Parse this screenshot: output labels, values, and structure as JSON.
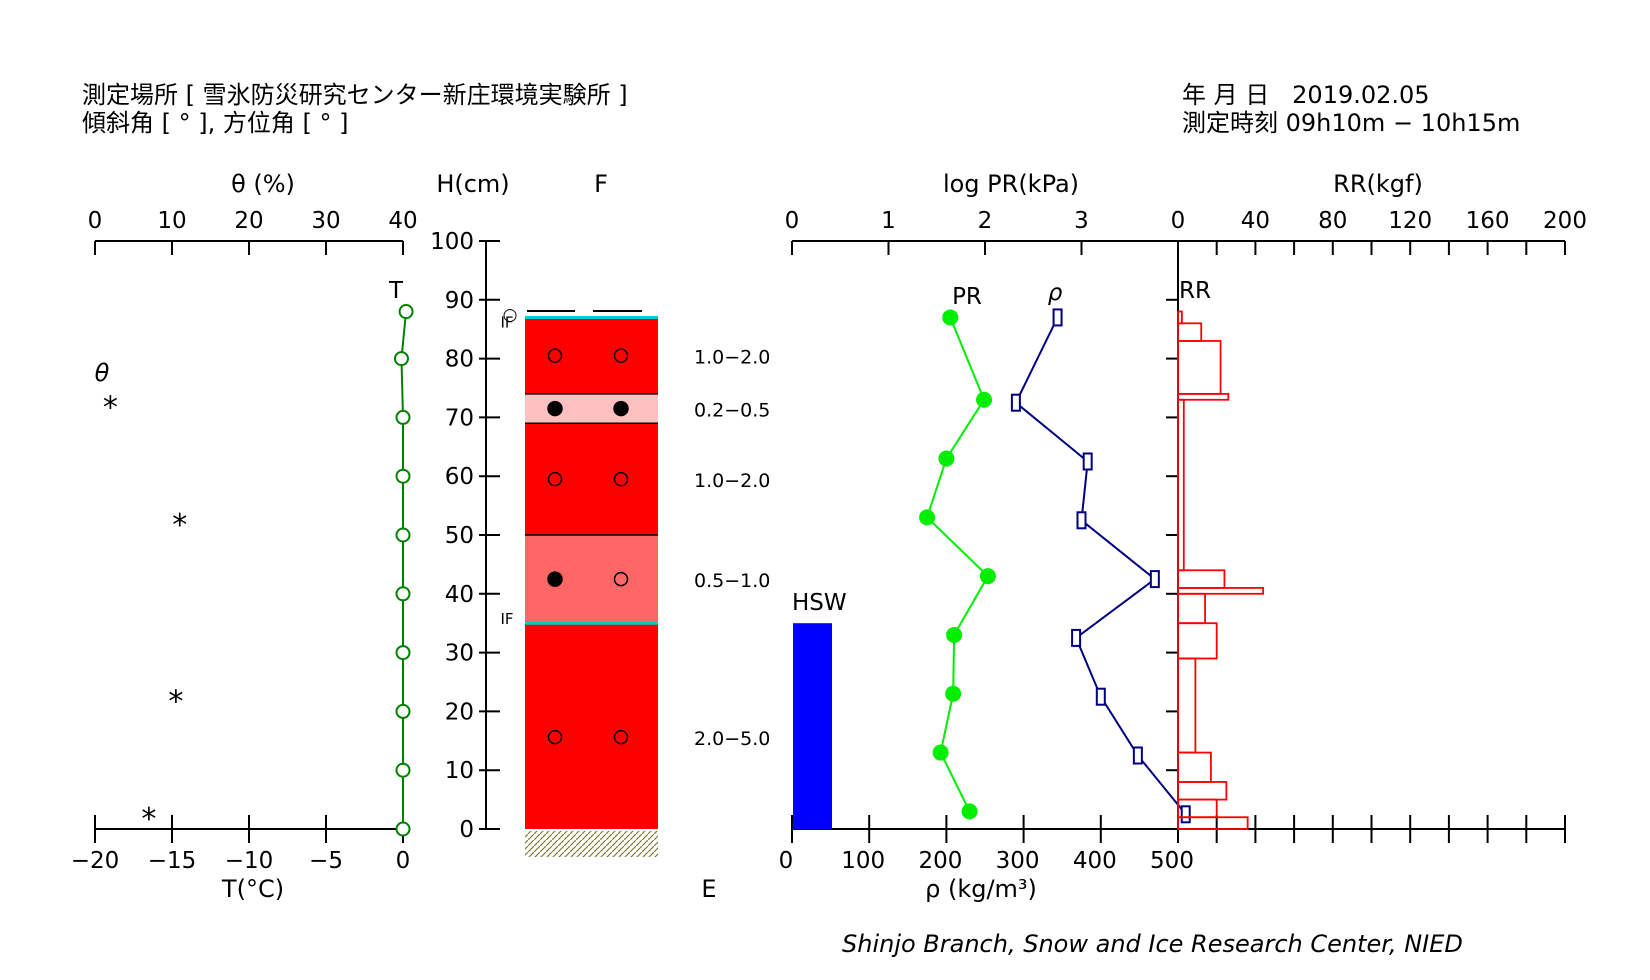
{
  "header": {
    "location_label": "測定場所",
    "location_name": "[ 雪氷防災研究センター新庄環境実験所 ]",
    "angles_label": "傾斜角 [ ° ], 方位角 [ ° ]",
    "date_label": "年 月 日",
    "date_value": "2019.02.05",
    "time_label": "測定時刻",
    "time_value": "09h10m − 10h15m"
  },
  "footer": "Shinjo Branch, Snow and Ice Research Center, NIED",
  "chart_data": [
    {
      "type": "scatter",
      "name_label": "θ",
      "xlabel": "θ (%)",
      "xlim": [
        0,
        40
      ],
      "xticks": [
        0,
        10,
        20,
        30,
        40
      ],
      "marker": "*",
      "points": [
        {
          "theta": 2,
          "height": 72
        },
        {
          "theta": 11,
          "height": 52
        },
        {
          "theta": 10.5,
          "height": 22
        },
        {
          "theta": 7,
          "height": 2
        }
      ]
    },
    {
      "type": "line",
      "name_label": "T",
      "xlabel": "T(°C)",
      "xlim": [
        -20,
        0
      ],
      "xticks": [
        -20,
        -15,
        -10,
        -5,
        0
      ],
      "color": "#008000",
      "points": [
        {
          "temp": 0.2,
          "height": 88
        },
        {
          "temp": -0.1,
          "height": 80
        },
        {
          "temp": 0,
          "height": 70
        },
        {
          "temp": 0,
          "height": 60
        },
        {
          "temp": 0,
          "height": 50
        },
        {
          "temp": 0,
          "height": 40
        },
        {
          "temp": 0,
          "height": 30
        },
        {
          "temp": 0,
          "height": 20
        },
        {
          "temp": 0,
          "height": 10
        },
        {
          "temp": 0,
          "height": 0
        }
      ]
    },
    {
      "type": "table",
      "name": "layers",
      "ylabel": "H(cm)",
      "ylim": [
        0,
        100
      ],
      "yticks": [
        0,
        10,
        20,
        30,
        40,
        50,
        60,
        70,
        80,
        90,
        100
      ],
      "column_label": "F",
      "bottom_label": "E",
      "snow_surface": 87,
      "ice_layers": [
        {
          "height": 87,
          "label": "IF"
        },
        {
          "height": 35,
          "label": "IF"
        }
      ],
      "surface_marks": [
        "○",
        "—",
        "—"
      ],
      "layers": [
        {
          "bottom": 0,
          "top": 35,
          "color": "#ff0000",
          "grain": [
            "open",
            "open"
          ],
          "grain_size": "2.0−5.0"
        },
        {
          "bottom": 35,
          "top": 50,
          "color": "#ff6666",
          "grain": [
            "filled",
            "open"
          ],
          "grain_size": "0.5−1.0"
        },
        {
          "bottom": 50,
          "top": 69,
          "color": "#ff0000",
          "grain": [
            "open",
            "open"
          ],
          "grain_size": "1.0−2.0"
        },
        {
          "bottom": 69,
          "top": 74,
          "color": "#ffc0c0",
          "grain": [
            "filled",
            "filled"
          ],
          "grain_size": "0.2−0.5"
        },
        {
          "bottom": 74,
          "top": 87,
          "color": "#ff0000",
          "grain": [
            "open",
            "open"
          ],
          "grain_size": "1.0−2.0"
        }
      ]
    },
    {
      "type": "bar",
      "name_label": "HSW",
      "value_height": 35,
      "color": "#0000ff"
    },
    {
      "type": "line",
      "name_label": "PR",
      "xlabel": "log PR(kPa)",
      "xlim": [
        0,
        4
      ],
      "xticks": [
        0,
        1,
        2,
        3
      ],
      "color": "#00ee00",
      "points": [
        {
          "logpr": 1.64,
          "height": 87
        },
        {
          "logpr": 1.99,
          "height": 73
        },
        {
          "logpr": 1.6,
          "height": 63
        },
        {
          "logpr": 1.4,
          "height": 53
        },
        {
          "logpr": 2.03,
          "height": 43
        },
        {
          "logpr": 1.68,
          "height": 33
        },
        {
          "logpr": 1.67,
          "height": 23
        },
        {
          "logpr": 1.54,
          "height": 13
        },
        {
          "logpr": 1.84,
          "height": 3
        }
      ]
    },
    {
      "type": "line",
      "name_label": "ρ",
      "xlabel": "ρ (kg/m³)",
      "xlim": [
        0,
        500
      ],
      "xticks": [
        0,
        100,
        200,
        300,
        400,
        500
      ],
      "color": "#000080",
      "points": [
        {
          "density": 344,
          "height": 87
        },
        {
          "density": 290,
          "height": 72.5
        },
        {
          "density": 383,
          "height": 62.5
        },
        {
          "density": 375,
          "height": 52.5
        },
        {
          "density": 470,
          "height": 42.5
        },
        {
          "density": 368,
          "height": 32.5
        },
        {
          "density": 400,
          "height": 22.5
        },
        {
          "density": 448,
          "height": 12.5
        },
        {
          "density": 510,
          "height": 2.5
        }
      ]
    },
    {
      "type": "bar",
      "name_label": "RR",
      "xlabel": "RR(kgf)",
      "xticks": [
        0,
        40,
        80,
        120,
        160,
        200
      ],
      "color": "#ff0000",
      "bars": [
        {
          "bottom": 86,
          "top": 88,
          "value": 2
        },
        {
          "bottom": 83,
          "top": 86,
          "value": 12
        },
        {
          "bottom": 74,
          "top": 83,
          "value": 22
        },
        {
          "bottom": 73,
          "top": 74,
          "value": 26
        },
        {
          "bottom": 44,
          "top": 73,
          "value": 3
        },
        {
          "bottom": 41,
          "top": 44,
          "value": 24
        },
        {
          "bottom": 40,
          "top": 41,
          "value": 44
        },
        {
          "bottom": 35,
          "top": 40,
          "value": 14
        },
        {
          "bottom": 29,
          "top": 35,
          "value": 20
        },
        {
          "bottom": 13,
          "top": 29,
          "value": 9
        },
        {
          "bottom": 8,
          "top": 13,
          "value": 17
        },
        {
          "bottom": 5,
          "top": 8,
          "value": 25
        },
        {
          "bottom": 2,
          "top": 5,
          "value": 20
        },
        {
          "bottom": 0,
          "top": 2,
          "value": 36
        }
      ]
    }
  ]
}
